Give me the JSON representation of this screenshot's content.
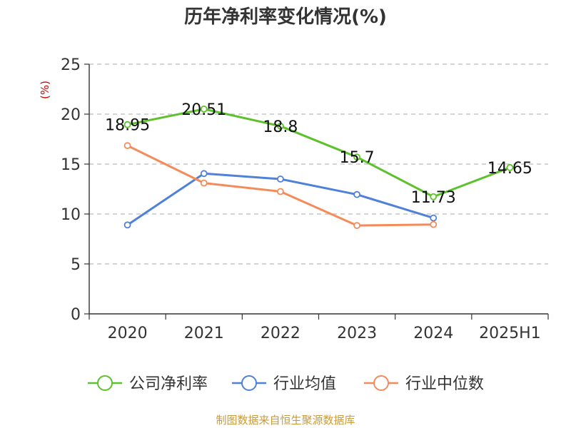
{
  "chart_data": {
    "type": "line",
    "title": "历年净利率变化情况(%)",
    "ylabel": "(%)",
    "xlabel": "",
    "categories": [
      "2020",
      "2021",
      "2022",
      "2023",
      "2024",
      "2025H1"
    ],
    "ylim": [
      0,
      25
    ],
    "yticks": [
      0,
      5,
      10,
      15,
      20,
      25
    ],
    "grid": true,
    "legend_position": "bottom",
    "series": [
      {
        "name": "公司净利率",
        "color": "#5cc12a",
        "values": [
          18.95,
          20.51,
          18.8,
          15.7,
          11.73,
          14.65
        ],
        "labels": [
          "18.95",
          "20.51",
          "18.8",
          "15.7",
          "11.73",
          "14.65"
        ]
      },
      {
        "name": "行业均值",
        "color": "#4f81d9",
        "values": [
          8.9,
          14.05,
          13.5,
          11.95,
          9.6,
          null
        ]
      },
      {
        "name": "行业中位数",
        "color": "#f58b5a",
        "values": [
          16.85,
          13.1,
          12.25,
          8.85,
          8.95,
          null
        ]
      }
    ]
  },
  "footer": {
    "source": "制图数据来自恒生聚源数据库"
  }
}
